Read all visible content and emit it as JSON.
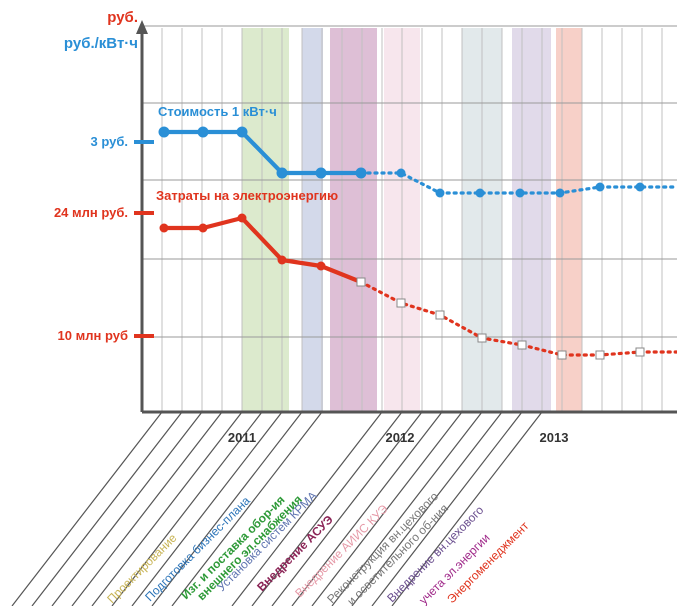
{
  "chart_data": {
    "type": "line",
    "title": "",
    "y_axis_labels": {
      "rub": "руб.",
      "rub_per_kwh": "руб./кВт·ч"
    },
    "y_ticks": [
      {
        "label": "3 руб.",
        "color": "#2a8fd6"
      },
      {
        "label": "24 млн руб.",
        "color": "#e0341e"
      },
      {
        "label": "10 млн руб",
        "color": "#e0341e"
      }
    ],
    "year_labels": [
      "2011",
      "2012",
      "2013"
    ],
    "series": [
      {
        "name": "Стоимость 1 кВт·ч",
        "color": "#2a8fd6",
        "unit": "руб./кВт·ч",
        "points_actual": [
          {
            "col": 0.5,
            "value": 3.35
          },
          {
            "col": 1.5,
            "value": 3.35
          },
          {
            "col": 2.5,
            "value": 3.35
          },
          {
            "col": 3.7,
            "value": 2.9
          },
          {
            "col": 4.7,
            "value": 2.9
          },
          {
            "col": 5.7,
            "value": 2.9
          }
        ],
        "points_forecast": [
          {
            "col": 5.7,
            "value": 2.9
          },
          {
            "col": 6.8,
            "value": 2.9
          },
          {
            "col": 7.8,
            "value": 2.75
          },
          {
            "col": 9.0,
            "value": 2.75
          },
          {
            "col": 10.3,
            "value": 2.75
          },
          {
            "col": 11.5,
            "value": 2.75
          },
          {
            "col": 12.3,
            "value": 2.78
          },
          {
            "col": 13.7,
            "value": 2.78
          },
          {
            "col": 14.3,
            "value": 2.78
          }
        ]
      },
      {
        "name": "Затраты на электроэнергию",
        "color": "#e0341e",
        "unit": "млн руб.",
        "points_actual": [
          {
            "col": 0.5,
            "value": 23
          },
          {
            "col": 1.5,
            "value": 23
          },
          {
            "col": 2.5,
            "value": 24
          },
          {
            "col": 3.5,
            "value": 19
          },
          {
            "col": 4.5,
            "value": 18.4
          },
          {
            "col": 5.6,
            "value": 16.3
          }
        ],
        "points_forecast": [
          {
            "col": 5.6,
            "value": 16.3
          },
          {
            "col": 6.6,
            "value": 14.4
          },
          {
            "col": 7.6,
            "value": 13.4
          },
          {
            "col": 8.6,
            "value": 10.1
          },
          {
            "col": 9.6,
            "value": 9.4
          },
          {
            "col": 10.6,
            "value": 8.3
          },
          {
            "col": 11.6,
            "value": 8.3
          },
          {
            "col": 12.6,
            "value": 8.5
          },
          {
            "col": 13.6,
            "value": 8.5
          },
          {
            "col": 14.3,
            "value": 8.5
          }
        ]
      }
    ],
    "phases": [
      {
        "label": "Проектирование",
        "color": "#c8b455",
        "shade": false,
        "end_col": 0
      },
      {
        "label": "Подготовка бизнес-плана",
        "color": "#2b74b8",
        "shade": false,
        "end_col": 2
      },
      {
        "label": "Изг. и поставка обор-ия",
        "color": "#2e9a38",
        "shade": "#d6e6c4",
        "end_col": 3
      },
      {
        "label": "внешнего эл.снабжения",
        "color": "#2e9a38",
        "shade": false,
        "end_col": 4
      },
      {
        "label": "Установка систем КРМА",
        "color": "#5f74b0",
        "shade": "#cbd2e6",
        "end_col": 4.5
      },
      {
        "label": "Внедрение АСУЭ",
        "color": "#8b2456",
        "shade": "#d8b4cf",
        "end_col": 5.7
      },
      {
        "label": "Внедрение АИИС КУЭ",
        "color": "#e69aa8",
        "shade": "#f6e2ea",
        "end_col": 6.6
      },
      {
        "label": "Реконструкция вн.цехового",
        "color": "#777777",
        "shade": false,
        "end_col": 8
      },
      {
        "label": "и осветительного об-ния",
        "color": "#777777",
        "shade": "#dde5e8",
        "end_col": 9
      },
      {
        "label": "Внедрение вн.цехового",
        "color": "#6b4f8f",
        "shade": "#dcd3e6",
        "end_col": 10
      },
      {
        "label": "учета эл.энергии",
        "color": "#a02a8a",
        "shade": false,
        "end_col": 11
      },
      {
        "label": "Энергоменеджмент",
        "color": "#e0341e",
        "shade": "#f6c8be",
        "end_col": 12
      }
    ]
  }
}
